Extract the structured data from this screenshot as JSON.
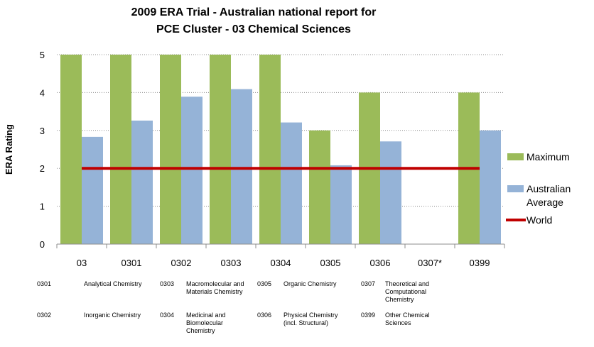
{
  "chart_data": {
    "type": "bar",
    "title": [
      "2009 ERA Trial - Australian national report for",
      "PCE Cluster - 03 Chemical Sciences"
    ],
    "ylabel": "ERA Rating",
    "xlabel": "",
    "ylim": [
      0,
      5
    ],
    "yticks": [
      0,
      1,
      2,
      3,
      4,
      5
    ],
    "grid": true,
    "legend_position": "right",
    "categories": [
      "03",
      "0301",
      "0302",
      "0303",
      "0304",
      "0305",
      "0306",
      "0307*",
      "0399"
    ],
    "series": [
      {
        "name": "Maximum",
        "type": "bar",
        "color": "#9bbb59",
        "values": [
          5,
          5,
          5,
          5,
          5,
          3,
          4,
          null,
          4
        ]
      },
      {
        "name": "Australian Average",
        "type": "bar",
        "color": "#95b3d7",
        "values": [
          2.83,
          3.26,
          3.89,
          4.09,
          3.21,
          2.08,
          2.71,
          null,
          3.0
        ]
      },
      {
        "name": "World",
        "type": "line",
        "color": "#c00000",
        "values": [
          2,
          2,
          2,
          2,
          2,
          2,
          2,
          2,
          2
        ]
      }
    ],
    "footnotes": [
      [
        {
          "code": "0301",
          "lines": [
            "Analytical Chemistry"
          ]
        },
        {
          "code": "0303",
          "lines": [
            "Macromolecular and",
            "Materials Chemistry"
          ]
        },
        {
          "code": "0305",
          "lines": [
            "Organic Chemistry"
          ]
        },
        {
          "code": "0307",
          "lines": [
            "Theoretical and",
            "Computational",
            "Chemistry"
          ]
        }
      ],
      [
        {
          "code": "0302",
          "lines": [
            "Inorganic Chemistry"
          ]
        },
        {
          "code": "0304",
          "lines": [
            "Medicinal and",
            "Biomolecular",
            "Chemistry"
          ]
        },
        {
          "code": "0306",
          "lines": [
            "Physical Chemistry",
            "(incl. Structural)"
          ]
        },
        {
          "code": "0399",
          "lines": [
            "Other Chemical",
            "Sciences"
          ]
        }
      ]
    ]
  }
}
